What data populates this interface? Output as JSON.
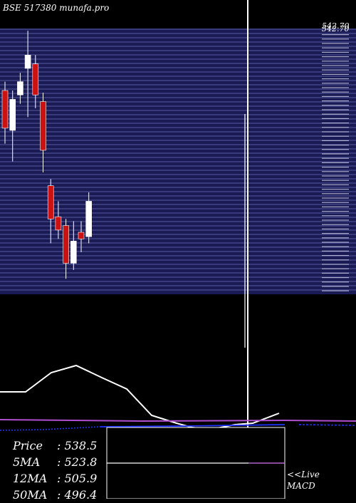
{
  "watermark": "BSE 517380  munafa.pro",
  "colors": {
    "background": "#000000",
    "price_panel": "#1a1a55",
    "gridline": "#6e72b8",
    "up_candle": "#ffffff",
    "down_candle": "#cc1111",
    "indicator_line": "#ffffff",
    "ma_line": "#b04fd0",
    "blue_line": "#2233ff"
  },
  "chart_data": {
    "type": "candlestick",
    "title": "",
    "xlabel": "",
    "ylabel": "",
    "ylim": [
      440,
      560
    ],
    "grid": true,
    "price_labels_visible": [
      "542.70",
      "542.70"
    ],
    "candles": [
      {
        "open": 532,
        "high": 536,
        "low": 508,
        "close": 515,
        "dir": "down"
      },
      {
        "open": 514,
        "high": 532,
        "low": 500,
        "close": 528,
        "dir": "up"
      },
      {
        "open": 536,
        "high": 540,
        "low": 526,
        "close": 530,
        "dir": "up"
      },
      {
        "open": 548,
        "high": 559,
        "low": 520,
        "close": 542,
        "dir": "up"
      },
      {
        "open": 544,
        "high": 548,
        "low": 524,
        "close": 530,
        "dir": "down"
      },
      {
        "open": 527,
        "high": 531,
        "low": 495,
        "close": 505,
        "dir": "down"
      },
      {
        "open": 489,
        "high": 492,
        "low": 463,
        "close": 474,
        "dir": "down"
      },
      {
        "open": 475,
        "high": 482,
        "low": 465,
        "close": 469,
        "dir": "down"
      },
      {
        "open": 471,
        "high": 474,
        "low": 447,
        "close": 454,
        "dir": "down"
      },
      {
        "open": 454,
        "high": 473,
        "low": 451,
        "close": 464,
        "dir": "up"
      },
      {
        "open": 465,
        "high": 473,
        "low": 459,
        "close": 468,
        "dir": "down"
      },
      {
        "open": 466,
        "high": 486,
        "low": 463,
        "close": 482,
        "dir": "up"
      }
    ]
  },
  "info": {
    "price_label": "Price",
    "price_value": ": 538.5",
    "ma5_label": "5MA",
    "ma5_value": ": 523.8",
    "ma12_label": "12MA",
    "ma12_value": ": 505.9",
    "ma50_label": "50MA",
    "ma50_value": ": 496.4"
  },
  "live_link": {
    "line1": "<<Live",
    "line2": "MACD"
  }
}
